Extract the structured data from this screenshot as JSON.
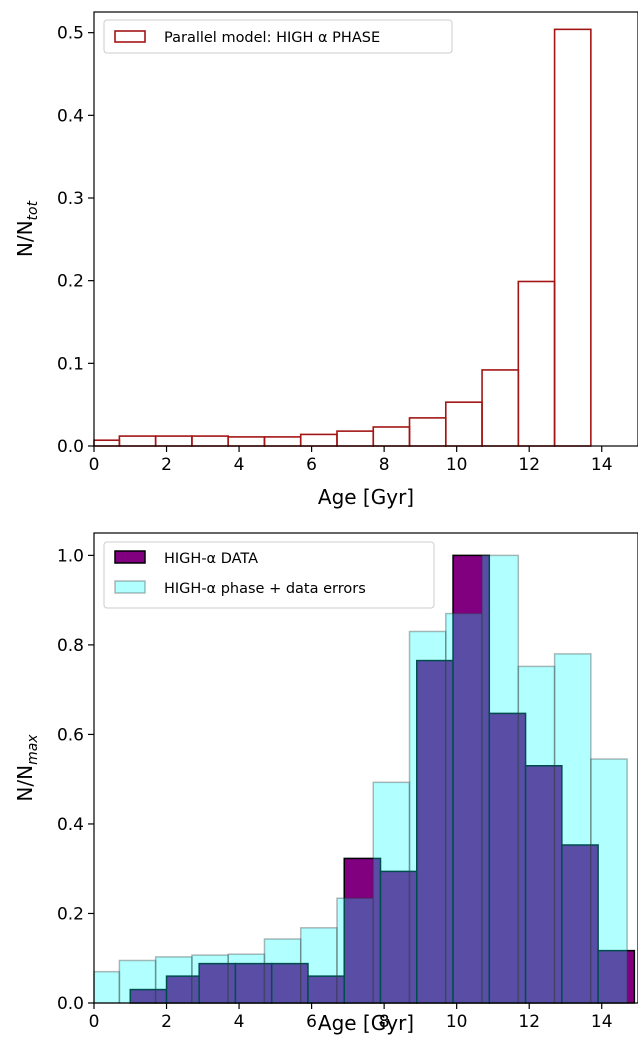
{
  "chart_data": [
    {
      "type": "bar",
      "xlabel": "Age [Gyr]",
      "ylabel": "N/N",
      "ylabel_sub": "tot",
      "xlim": [
        0,
        15
      ],
      "ylim": [
        0,
        0.525
      ],
      "xticks": [
        "0",
        "2",
        "4",
        "6",
        "8",
        "10",
        "12",
        "14"
      ],
      "yticks": [
        "0.0",
        "0.1",
        "0.2",
        "0.3",
        "0.4",
        "0.5"
      ],
      "grid": false,
      "legend_position": "upper-left",
      "series": [
        {
          "name": "Parallel model: HIGH α PHASE",
          "style": "step",
          "color": "#a31515",
          "bin_edges": [
            0,
            0.7,
            1.7,
            2.7,
            3.7,
            4.7,
            5.7,
            6.7,
            7.7,
            8.7,
            9.7,
            10.7,
            11.7,
            12.7,
            13.7
          ],
          "values": [
            0.007,
            0.012,
            0.012,
            0.012,
            0.011,
            0.011,
            0.014,
            0.018,
            0.023,
            0.034,
            0.053,
            0.092,
            0.199,
            0.504
          ]
        }
      ]
    },
    {
      "type": "bar",
      "xlabel": "Age [Gyr]",
      "ylabel": "N/N",
      "ylabel_sub": "max",
      "xlim": [
        0,
        15
      ],
      "ylim": [
        0,
        1.05
      ],
      "xticks": [
        "0",
        "2",
        "4",
        "6",
        "8",
        "10",
        "12",
        "14"
      ],
      "yticks": [
        "0.0",
        "0.2",
        "0.4",
        "0.6",
        "0.8",
        "1.0"
      ],
      "grid": false,
      "legend_position": "upper-left",
      "series": [
        {
          "name": "HIGH-α DATA",
          "style": "filled",
          "color": "#800080",
          "bin_edges": [
            1.0,
            2.0,
            2.9,
            3.9,
            4.9,
            5.9,
            6.9,
            7.9,
            8.9,
            9.9,
            10.9,
            11.9,
            12.9,
            13.9,
            14.9
          ],
          "values": [
            0.03,
            0.06,
            0.088,
            0.088,
            0.088,
            0.06,
            0.323,
            0.294,
            0.765,
            1.0,
            0.647,
            0.53,
            0.353,
            0.117
          ]
        },
        {
          "name": "HIGH-α phase + data errors",
          "style": "filled",
          "color": "#00ffff",
          "alpha": 0.3,
          "bin_edges": [
            0,
            0.7,
            1.7,
            2.7,
            3.7,
            4.7,
            5.7,
            6.7,
            7.7,
            8.7,
            9.7,
            10.7,
            11.7,
            12.7,
            13.7,
            14.7
          ],
          "values": [
            0.07,
            0.095,
            0.103,
            0.107,
            0.109,
            0.143,
            0.168,
            0.234,
            0.493,
            0.83,
            0.87,
            1.0,
            0.752,
            0.78,
            0.545
          ]
        }
      ]
    }
  ]
}
